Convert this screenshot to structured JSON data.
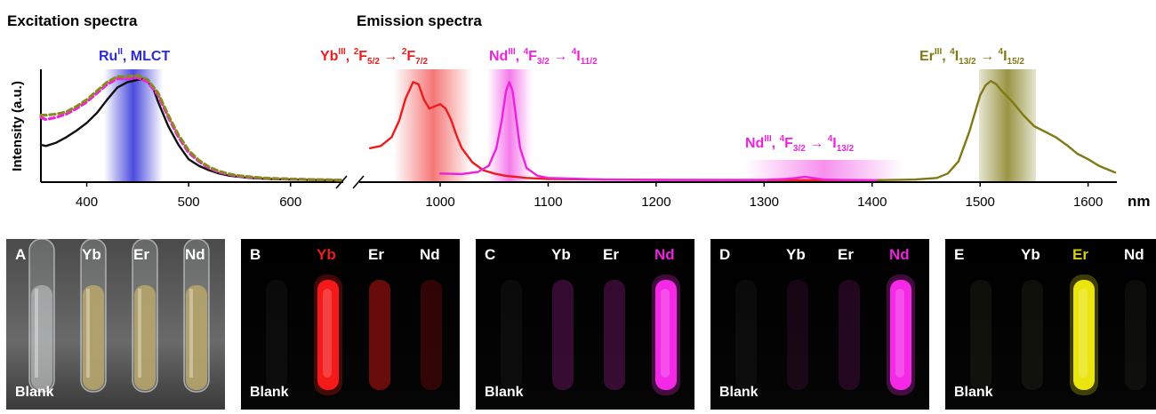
{
  "titles": {
    "excitation": "Excitation spectra",
    "emission": "Emission spectra"
  },
  "ylabel": "Intensity (a.u.)",
  "xunit": "nm",
  "colors": {
    "ru": "#2b2bd9",
    "yb": "#ee1c1c",
    "nd": "#ee22dd",
    "er": "#7f7a14"
  },
  "annotations": {
    "ru": {
      "main": "Ru",
      "sup": "II",
      "rest": ", MLCT"
    },
    "yb": {
      "main": "Yb",
      "sup": "III",
      "a": ", ",
      "b_sup": "2",
      "b": "F",
      "b_sub": "5/2",
      "arrow": " → ",
      "c_sup": "2",
      "c": "F",
      "c_sub": "7/2"
    },
    "nd1": {
      "main": "Nd",
      "sup": "III",
      "a": ", ",
      "b_sup": "4",
      "b": "F",
      "b_sub": "3/2",
      "arrow": " → ",
      "c_sup": "4",
      "c": "I",
      "c_sub": "11/2"
    },
    "nd2": {
      "main": "Nd",
      "sup": "III",
      "a": ", ",
      "b_sup": "4",
      "b": "F",
      "b_sub": "3/2",
      "arrow": " → ",
      "c_sup": "4",
      "c": "I",
      "c_sub": "13/2"
    },
    "er": {
      "main": "Er",
      "sup": "III",
      "a": ", ",
      "b_sup": "4",
      "b": "I",
      "b_sub": "13/2",
      "arrow": " → ",
      "c_sup": "4",
      "c": "I",
      "c_sub": "15/2"
    }
  },
  "chart_data": [
    {
      "type": "line",
      "title": "Excitation spectra",
      "ylabel": "Intensity (a.u.)",
      "xlim": [
        355,
        650
      ],
      "xticks": [
        400,
        500,
        600
      ],
      "highlight_band": {
        "range": [
          420,
          475
        ],
        "label": "Ru(II), MLCT"
      },
      "series": [
        {
          "color": "#111111",
          "style": "solid",
          "x": [
            355,
            360,
            370,
            380,
            390,
            400,
            410,
            420,
            430,
            440,
            450,
            455,
            460,
            465,
            470,
            480,
            490,
            500,
            510,
            520,
            530,
            540,
            550,
            560,
            570,
            580,
            600,
            620,
            640,
            650
          ],
          "y": [
            0.33,
            0.32,
            0.35,
            0.4,
            0.46,
            0.53,
            0.62,
            0.74,
            0.85,
            0.9,
            0.92,
            0.93,
            0.9,
            0.85,
            0.72,
            0.5,
            0.33,
            0.2,
            0.14,
            0.1,
            0.07,
            0.05,
            0.04,
            0.03,
            0.025,
            0.02,
            0.015,
            0.012,
            0.01,
            0.01
          ]
        },
        {
          "color": "#ee22dd",
          "style": "dashed",
          "x": [
            355,
            360,
            370,
            380,
            390,
            400,
            410,
            420,
            430,
            440,
            450,
            460,
            470,
            480,
            490,
            500,
            510,
            520,
            530,
            540,
            550,
            560,
            570,
            580,
            600,
            620,
            640,
            650
          ],
          "y": [
            0.58,
            0.56,
            0.58,
            0.61,
            0.66,
            0.72,
            0.8,
            0.88,
            0.93,
            0.93,
            0.94,
            0.9,
            0.78,
            0.58,
            0.4,
            0.26,
            0.18,
            0.12,
            0.08,
            0.06,
            0.045,
            0.035,
            0.03,
            0.025,
            0.02,
            0.015,
            0.012,
            0.01
          ]
        },
        {
          "color": "#8a8a20",
          "style": "dashed",
          "x": [
            355,
            360,
            370,
            380,
            390,
            400,
            410,
            420,
            430,
            440,
            450,
            460,
            470,
            480,
            490,
            500,
            510,
            520,
            530,
            540,
            550,
            560,
            570,
            580,
            600,
            620,
            640,
            650
          ],
          "y": [
            0.6,
            0.6,
            0.61,
            0.63,
            0.68,
            0.74,
            0.82,
            0.9,
            0.95,
            0.95,
            0.96,
            0.92,
            0.8,
            0.6,
            0.42,
            0.28,
            0.19,
            0.13,
            0.09,
            0.065,
            0.05,
            0.04,
            0.032,
            0.026,
            0.02,
            0.015,
            0.012,
            0.01
          ]
        }
      ]
    },
    {
      "type": "line",
      "title": "Emission spectra",
      "xlabel": "nm",
      "xlim": [
        930,
        1625
      ],
      "xticks": [
        1000,
        1100,
        1200,
        1300,
        1400,
        1500,
        1600
      ],
      "highlight_bands": [
        {
          "range": [
            950,
            1030
          ],
          "color": "#ee1c1c"
        },
        {
          "range": [
            1045,
            1085
          ],
          "color": "#ee22dd"
        },
        {
          "range": [
            1285,
            1415
          ],
          "color": "#ee22dd"
        },
        {
          "range": [
            1500,
            1550
          ],
          "color": "#7f7a14"
        }
      ],
      "series": [
        {
          "color": "#ee1c1c",
          "style": "solid",
          "x": [
            935,
            945,
            955,
            962,
            968,
            975,
            980,
            985,
            990,
            995,
            1000,
            1005,
            1010,
            1015,
            1020,
            1030,
            1040,
            1050,
            1060,
            1080,
            1100,
            1150,
            1200,
            1300,
            1400
          ],
          "y": [
            0.3,
            0.32,
            0.4,
            0.55,
            0.75,
            0.9,
            0.88,
            0.74,
            0.66,
            0.68,
            0.7,
            0.66,
            0.56,
            0.42,
            0.3,
            0.17,
            0.1,
            0.07,
            0.05,
            0.03,
            0.02,
            0.015,
            0.012,
            0.01,
            0.01
          ]
        },
        {
          "color": "#ee22dd",
          "style": "solid",
          "x": [
            1000,
            1020,
            1035,
            1045,
            1052,
            1057,
            1061,
            1064,
            1067,
            1070,
            1074,
            1080,
            1090,
            1100,
            1150,
            1200,
            1300,
            1320,
            1330,
            1338,
            1345,
            1355,
            1370,
            1400,
            1410
          ],
          "y": [
            0.07,
            0.065,
            0.085,
            0.14,
            0.3,
            0.55,
            0.82,
            0.9,
            0.82,
            0.6,
            0.3,
            0.12,
            0.05,
            0.03,
            0.015,
            0.012,
            0.012,
            0.02,
            0.03,
            0.04,
            0.03,
            0.015,
            0.012,
            0.01,
            0.01
          ]
        },
        {
          "color": "#7f7a14",
          "style": "solid",
          "x": [
            1405,
            1440,
            1460,
            1470,
            1480,
            1490,
            1500,
            1505,
            1510,
            1515,
            1520,
            1530,
            1540,
            1550,
            1560,
            1570,
            1580,
            1590,
            1600,
            1610,
            1620,
            1625
          ],
          "y": [
            0.01,
            0.015,
            0.03,
            0.07,
            0.18,
            0.45,
            0.78,
            0.87,
            0.91,
            0.88,
            0.82,
            0.72,
            0.6,
            0.5,
            0.45,
            0.4,
            0.33,
            0.25,
            0.2,
            0.14,
            0.1,
            0.08
          ]
        }
      ]
    }
  ],
  "panels": [
    {
      "letter": "A",
      "blank": "Blank",
      "labels": [
        "Yb",
        "Er",
        "Nd"
      ],
      "label_colors": [
        "#ffffff",
        "#ffffff",
        "#ffffff"
      ]
    },
    {
      "letter": "B",
      "blank": "Blank",
      "labels": [
        "Yb",
        "Er",
        "Nd"
      ],
      "label_colors": [
        "#ee1c1c",
        "#ffffff",
        "#ffffff"
      ]
    },
    {
      "letter": "C",
      "blank": "Blank",
      "labels": [
        "Yb",
        "Er",
        "Nd"
      ],
      "label_colors": [
        "#ffffff",
        "#ffffff",
        "#ee22dd"
      ]
    },
    {
      "letter": "D",
      "blank": "Blank",
      "labels": [
        "Yb",
        "Er",
        "Nd"
      ],
      "label_colors": [
        "#ffffff",
        "#ffffff",
        "#ee22dd"
      ]
    },
    {
      "letter": "E",
      "blank": "Blank",
      "labels": [
        "Yb",
        "Er",
        "Nd"
      ],
      "label_colors": [
        "#ffffff",
        "#d8d000",
        "#ffffff"
      ]
    }
  ]
}
